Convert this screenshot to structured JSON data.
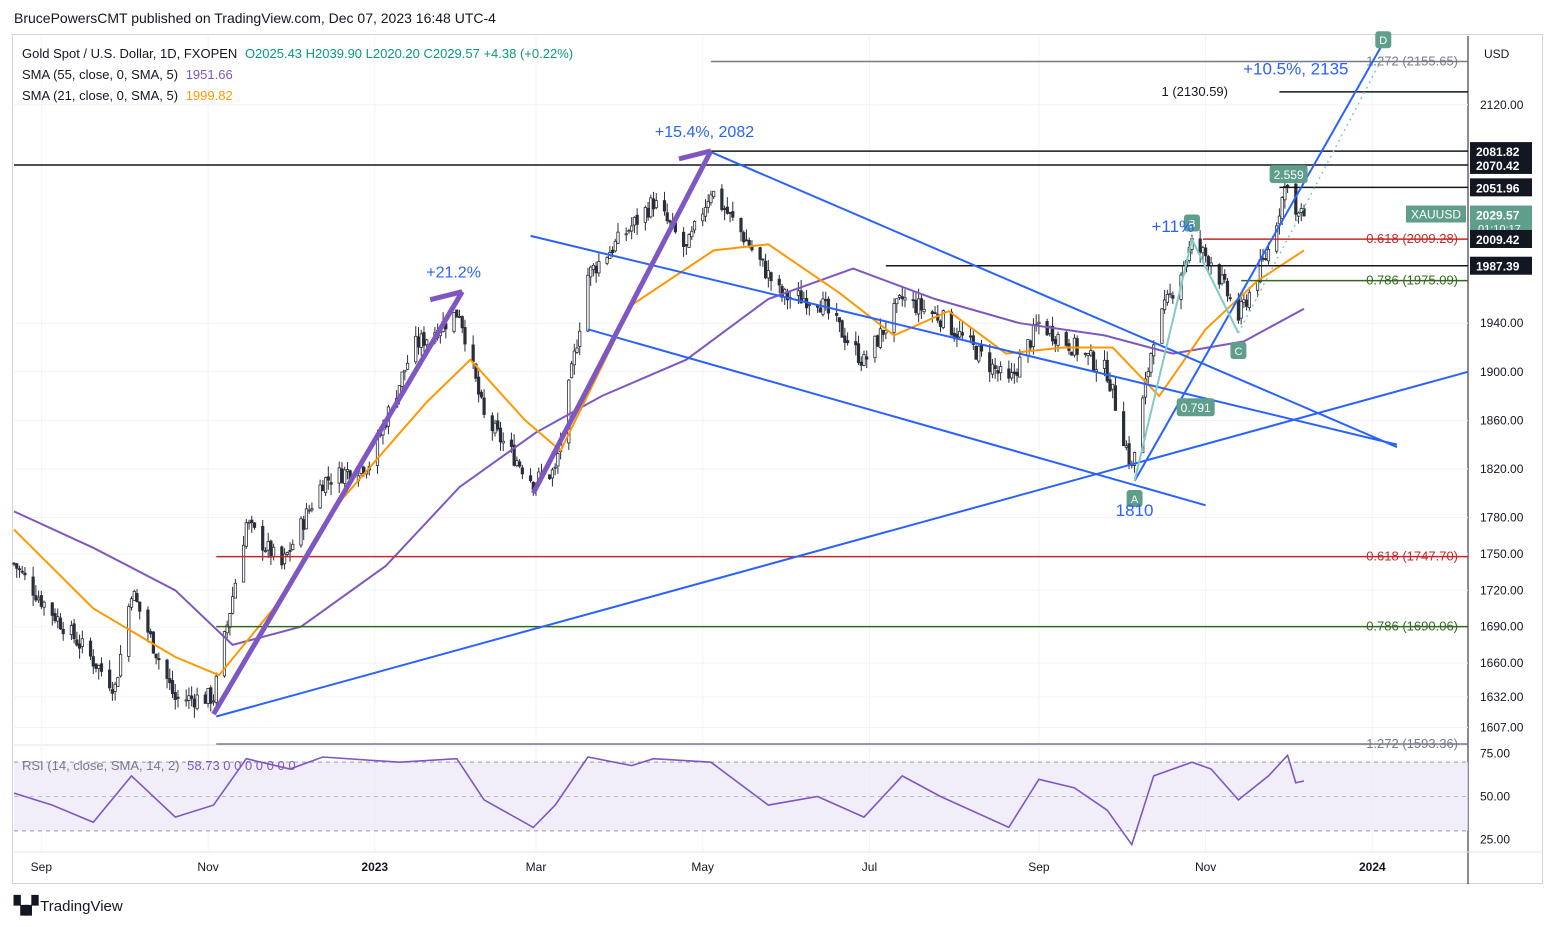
{
  "header": {
    "publisher_line": "BrucePowersCMT published on TradingView.com, Dec 07, 2023 16:48 UTC-4"
  },
  "legend": {
    "symbol": "Gold Spot / U.S. Dollar, 1D, FXOPEN",
    "ohlc": "O2025.43  H2039.90  L2020.20  C2029.57  +4.38 (+0.22%)",
    "sma55_label": "SMA (55, close, 0, SMA, 5)",
    "sma55_value": "1951.66",
    "sma21_label": "SMA (21, close, 0, SMA, 5)",
    "sma21_value": "1999.82",
    "rsi_label": "RSI (14, close, SMA, 14, 2)",
    "rsi_values": "58.73  0  0  0  0  0  0  0"
  },
  "currency": "USD",
  "footer": {
    "brand": "TradingView"
  },
  "colors": {
    "up": "#089981",
    "down": "#f23645",
    "candle": "#2e2e2e",
    "sma55": "#7e57c2",
    "sma21": "#ff9800",
    "trend": "#2962ff",
    "fib618": "#c62828",
    "fib786": "#33691e",
    "fib1272": "#787b86",
    "rsi": "#7e57c2",
    "rsi_bg": "#ede7f6"
  },
  "chart_data": {
    "type": "candlestick",
    "symbol": "XAUUSD",
    "timeframe": "1D",
    "x_range": [
      "2022-08-22",
      "2024-02-05"
    ],
    "ylim": [
      1595,
      2175
    ],
    "x_ticks": [
      "Sep",
      "Nov",
      "2023",
      "Mar",
      "May",
      "Jul",
      "Sep",
      "Nov",
      "2024"
    ],
    "y_ticks": [
      2120.0,
      1940.0,
      1900.0,
      1860.0,
      1820.0,
      1780.0,
      1750.0,
      1720.0,
      1690.0,
      1660.0,
      1632.0,
      1607.0
    ],
    "price_labels": [
      {
        "value": "2081.82",
        "price": 2081.82
      },
      {
        "value": "2070.42",
        "price": 2070.42
      },
      {
        "value": "2051.96",
        "price": 2051.96
      },
      {
        "value": "2029.57",
        "price": 2029.57,
        "sub": "01:10:17"
      },
      {
        "value": "2009.42",
        "price": 2009.42
      },
      {
        "value": "1987.39",
        "price": 1987.39
      }
    ],
    "last_price_tag": "XAUUSD",
    "close_path": [
      [
        "2022-08-22",
        1742
      ],
      [
        "2022-09-01",
        1712
      ],
      [
        "2022-09-15",
        1676
      ],
      [
        "2022-09-28",
        1640
      ],
      [
        "2022-10-04",
        1720
      ],
      [
        "2022-10-20",
        1630
      ],
      [
        "2022-11-03",
        1632
      ],
      [
        "2022-11-15",
        1775
      ],
      [
        "2022-11-28",
        1740
      ],
      [
        "2022-12-13",
        1810
      ],
      [
        "2022-12-30",
        1825
      ],
      [
        "2023-01-15",
        1920
      ],
      [
        "2023-02-01",
        1950
      ],
      [
        "2023-02-10",
        1862
      ],
      [
        "2023-02-28",
        1810
      ],
      [
        "2023-03-08",
        1818
      ],
      [
        "2023-03-20",
        1980
      ],
      [
        "2023-04-05",
        2020
      ],
      [
        "2023-04-13",
        2040
      ],
      [
        "2023-04-25",
        2000
      ],
      [
        "2023-05-04",
        2050
      ],
      [
        "2023-05-15",
        2015
      ],
      [
        "2023-05-30",
        1962
      ],
      [
        "2023-06-12",
        1960
      ],
      [
        "2023-06-29",
        1908
      ],
      [
        "2023-07-13",
        1960
      ],
      [
        "2023-07-27",
        1945
      ],
      [
        "2023-08-10",
        1915
      ],
      [
        "2023-08-21",
        1890
      ],
      [
        "2023-09-01",
        1940
      ],
      [
        "2023-09-14",
        1920
      ],
      [
        "2023-09-26",
        1900
      ],
      [
        "2023-10-05",
        1820
      ],
      [
        "2023-10-13",
        1930
      ],
      [
        "2023-10-27",
        2005
      ],
      [
        "2023-11-03",
        1992
      ],
      [
        "2023-11-13",
        1945
      ],
      [
        "2023-11-24",
        2000
      ],
      [
        "2023-12-01",
        2060
      ],
      [
        "2023-12-04",
        2028
      ],
      [
        "2023-12-07",
        2029.57
      ]
    ],
    "sma21_path": [
      [
        "2022-08-22",
        1770
      ],
      [
        "2022-09-20",
        1705
      ],
      [
        "2022-10-20",
        1665
      ],
      [
        "2022-11-05",
        1650
      ],
      [
        "2022-11-25",
        1705
      ],
      [
        "2022-12-20",
        1795
      ],
      [
        "2023-01-20",
        1875
      ],
      [
        "2023-02-05",
        1910
      ],
      [
        "2023-02-25",
        1860
      ],
      [
        "2023-03-10",
        1835
      ],
      [
        "2023-04-05",
        1955
      ],
      [
        "2023-05-05",
        2000
      ],
      [
        "2023-05-25",
        2005
      ],
      [
        "2023-06-20",
        1965
      ],
      [
        "2023-07-10",
        1930
      ],
      [
        "2023-07-30",
        1950
      ],
      [
        "2023-08-20",
        1915
      ],
      [
        "2023-09-10",
        1920
      ],
      [
        "2023-09-28",
        1920
      ],
      [
        "2023-10-15",
        1880
      ],
      [
        "2023-11-01",
        1935
      ],
      [
        "2023-11-20",
        1975
      ],
      [
        "2023-12-07",
        2000
      ]
    ],
    "sma55_path": [
      [
        "2022-08-22",
        1785
      ],
      [
        "2022-09-20",
        1755
      ],
      [
        "2022-10-20",
        1720
      ],
      [
        "2022-11-10",
        1675
      ],
      [
        "2022-12-05",
        1690
      ],
      [
        "2023-01-05",
        1740
      ],
      [
        "2023-02-01",
        1805
      ],
      [
        "2023-03-01",
        1850
      ],
      [
        "2023-03-25",
        1880
      ],
      [
        "2023-04-25",
        1910
      ],
      [
        "2023-05-25",
        1960
      ],
      [
        "2023-06-25",
        1985
      ],
      [
        "2023-07-25",
        1960
      ],
      [
        "2023-08-25",
        1940
      ],
      [
        "2023-09-25",
        1930
      ],
      [
        "2023-10-20",
        1915
      ],
      [
        "2023-11-15",
        1925
      ],
      [
        "2023-12-07",
        1952
      ]
    ],
    "horizontal_levels": [
      {
        "name": "fib-1272-upper",
        "label": "1.272 (2155.65)",
        "price": 2155.65,
        "from": "2023-05-04",
        "color": "fib1272"
      },
      {
        "name": "fib-1-target",
        "label": "1 (2130.59)",
        "price": 2130.59,
        "from": "2023-11-28",
        "color": "black"
      },
      {
        "name": "level-2081",
        "label": "",
        "price": 2081.82,
        "from": "2023-05-04",
        "color": "black"
      },
      {
        "name": "level-2070",
        "label": "",
        "price": 2070.42,
        "from": "2022-08-22",
        "color": "black"
      },
      {
        "name": "level-2051",
        "label": "",
        "price": 2051.96,
        "from": "2023-11-28",
        "color": "black"
      },
      {
        "name": "fib-618-upper",
        "label": "0.618 (2009.28)",
        "price": 2009.28,
        "from": "2023-10-31",
        "color": "fib618"
      },
      {
        "name": "level-1987",
        "label": "",
        "price": 1987.39,
        "from": "2023-07-07",
        "color": "black"
      },
      {
        "name": "fib-786-upper",
        "label": "0.786 (1975.09)",
        "price": 1975.09,
        "from": "2023-11-14",
        "color": "fib786"
      },
      {
        "name": "fib-618-lower",
        "label": "0.618 (1747.70)",
        "price": 1747.7,
        "from": "2022-11-04",
        "color": "fib618"
      },
      {
        "name": "fib-786-lower",
        "label": "0.786 (1690.06)",
        "price": 1690.06,
        "from": "2022-11-04",
        "color": "fib786"
      },
      {
        "name": "fib-1272-lower",
        "label": "1.272 (1593.36)",
        "price": 1593.36,
        "from": "2022-11-04",
        "color": "fib1272"
      }
    ],
    "trend_lines": [
      {
        "name": "long-support-line",
        "from": [
          "2022-11-04",
          1616
        ],
        "to": [
          "2024-02-05",
          1900
        ]
      },
      {
        "name": "channel-upper-line",
        "from": [
          "2023-02-27",
          2012
        ],
        "to": [
          "2024-01-10",
          1840
        ]
      },
      {
        "name": "channel-lower-line",
        "from": [
          "2023-03-20",
          1935
        ],
        "to": [
          "2023-11-01",
          1790
        ]
      },
      {
        "name": "upper-trend-line",
        "from": [
          "2023-05-04",
          2081
        ],
        "to": [
          "2024-01-10",
          1838
        ]
      },
      {
        "name": "rising-support-line",
        "from": [
          "2023-10-06",
          1810
        ],
        "to": [
          "2024-01-06",
          2175
        ]
      }
    ],
    "move_arrows": [
      {
        "name": "rally-21-arrow",
        "label": "+21.2%",
        "from": [
          "2022-11-03",
          1618
        ],
        "to": [
          "2023-02-02",
          1966
        ]
      },
      {
        "name": "rally-15-arrow",
        "label": "+15.4%, 2082",
        "from": [
          "2023-02-28",
          1800
        ],
        "to": [
          "2023-05-04",
          2082
        ]
      }
    ],
    "annotations": [
      {
        "name": "rally-11-label",
        "text": "+11%",
        "date": "2023-10-20",
        "price": 2015
      },
      {
        "name": "rally-105-label",
        "text": "+10.5%, 2135",
        "date": "2023-12-04",
        "price": 2145
      },
      {
        "name": "low-1810-label",
        "text": "1810",
        "date": "2023-10-06",
        "price": 1781
      },
      {
        "name": "ratio-0791-label",
        "text": "0.791",
        "date": "2023-10-28",
        "price": 1870
      },
      {
        "name": "ratio-2559-label",
        "text": "2.559",
        "date": "2023-12-01",
        "price": 2062
      }
    ],
    "wave_points": [
      {
        "label": "A",
        "date": "2023-10-06",
        "price": 1810
      },
      {
        "label": "B",
        "date": "2023-10-27",
        "price": 2009
      },
      {
        "label": "C",
        "date": "2023-11-13",
        "price": 1932
      },
      {
        "label": "D",
        "date": "2024-01-05",
        "price": 2160
      }
    ],
    "rsi": {
      "period": 14,
      "ylim": [
        20,
        80
      ],
      "y_ticks": [
        75.0,
        50.0,
        25.0
      ],
      "bands": [
        70,
        30
      ],
      "path": [
        [
          "2022-08-22",
          52
        ],
        [
          "2022-09-05",
          45
        ],
        [
          "2022-09-20",
          35
        ],
        [
          "2022-10-04",
          62
        ],
        [
          "2022-10-20",
          38
        ],
        [
          "2022-11-03",
          45
        ],
        [
          "2022-11-15",
          72
        ],
        [
          "2022-12-01",
          66
        ],
        [
          "2022-12-13",
          73
        ],
        [
          "2023-01-10",
          70
        ],
        [
          "2023-01-31",
          72
        ],
        [
          "2023-02-10",
          48
        ],
        [
          "2023-02-28",
          32
        ],
        [
          "2023-03-08",
          45
        ],
        [
          "2023-03-20",
          73
        ],
        [
          "2023-04-05",
          68
        ],
        [
          "2023-04-13",
          72
        ],
        [
          "2023-05-04",
          70
        ],
        [
          "2023-05-25",
          45
        ],
        [
          "2023-06-12",
          50
        ],
        [
          "2023-06-29",
          38
        ],
        [
          "2023-07-13",
          62
        ],
        [
          "2023-07-27",
          50
        ],
        [
          "2023-08-21",
          32
        ],
        [
          "2023-09-01",
          60
        ],
        [
          "2023-09-14",
          55
        ],
        [
          "2023-09-26",
          42
        ],
        [
          "2023-10-05",
          22
        ],
        [
          "2023-10-13",
          62
        ],
        [
          "2023-10-27",
          70
        ],
        [
          "2023-11-03",
          66
        ],
        [
          "2023-11-13",
          48
        ],
        [
          "2023-11-24",
          62
        ],
        [
          "2023-12-01",
          74
        ],
        [
          "2023-12-04",
          58
        ],
        [
          "2023-12-07",
          59
        ]
      ]
    }
  }
}
